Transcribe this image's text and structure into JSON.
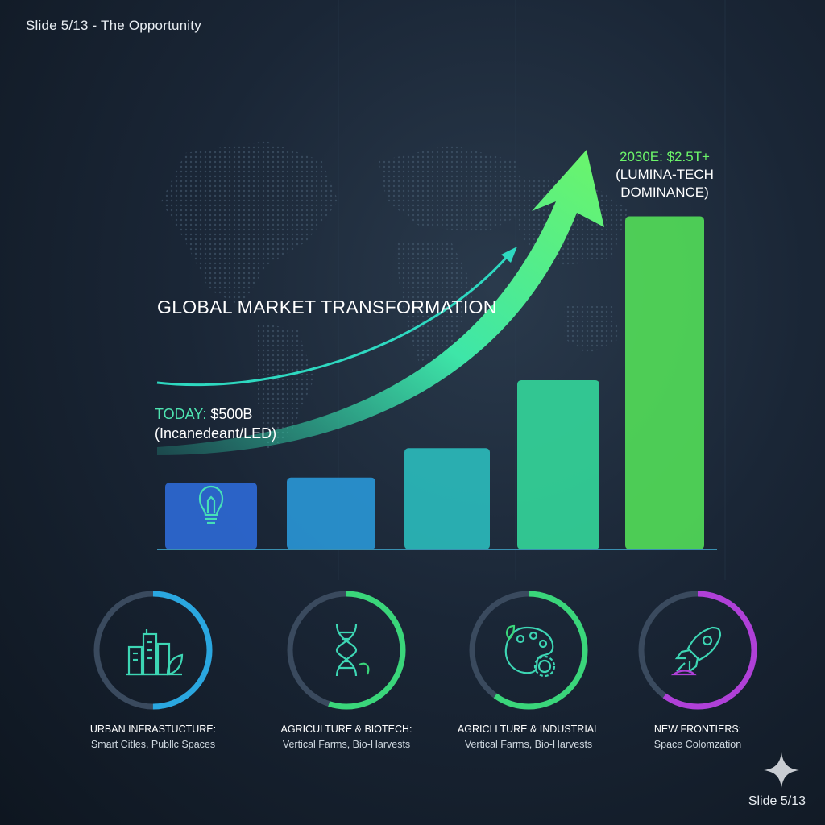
{
  "header": {
    "slide_label": "Slide 5/13 - The Opportunity"
  },
  "footer": {
    "slide_number": "Slide 5/13"
  },
  "colors": {
    "accent_teal": "#4ee3b0",
    "accent_green": "#6cf56a",
    "accent_purple": "#b040d8"
  },
  "chart_data": {
    "type": "bar",
    "title": "GLOBAL MARKET TRANSFORMATION",
    "xlabel": "",
    "ylabel": "",
    "categories": [
      "",
      "",
      "",
      "",
      ""
    ],
    "values": [
      0.5,
      0.54,
      0.76,
      1.27,
      2.5
    ],
    "annotations": {
      "start": {
        "highlight": "TODAY:",
        "value": "$500B",
        "note": "(Incanedeant/LED)"
      },
      "end": {
        "highlight": "2030E: $2.5T+",
        "note1": "(LUMINA-TECH",
        "note2": "DOMINANCE)"
      }
    },
    "bar_colors": [
      "#2f6fe0",
      "#2a9ee0",
      "#2bc4c4",
      "#35e0a0",
      "#56e95a"
    ],
    "first_bar_icon": "lightbulb-icon",
    "trend_arrow": true,
    "grid": false,
    "ylim": [
      0,
      2.6
    ]
  },
  "segments": [
    {
      "title": "URBAN INFRASTUCTURE:",
      "subtitle": "Smart Citles, Publlc Spaces",
      "icon": "city-buildings-icon",
      "color": "#2aa7e0",
      "fill": 0.5
    },
    {
      "title": "AGRICULTURE & BIOTECH:",
      "subtitle": "Vertical Farms, Bio-Harvests",
      "icon": "dna-icon",
      "color": "#3ad67a",
      "fill": 0.55
    },
    {
      "title": "AGRICLLTURE & INDUSTRIAL",
      "subtitle": "Vertical Farms, Bio-Harvests",
      "icon": "palette-gear-icon",
      "color": "#3ad67a",
      "fill": 0.6
    },
    {
      "title": "NEW FRONTIERS:",
      "subtitle": "Space Colomzation",
      "icon": "rocket-icon",
      "color": "#b040d8",
      "fill": 0.6
    }
  ]
}
